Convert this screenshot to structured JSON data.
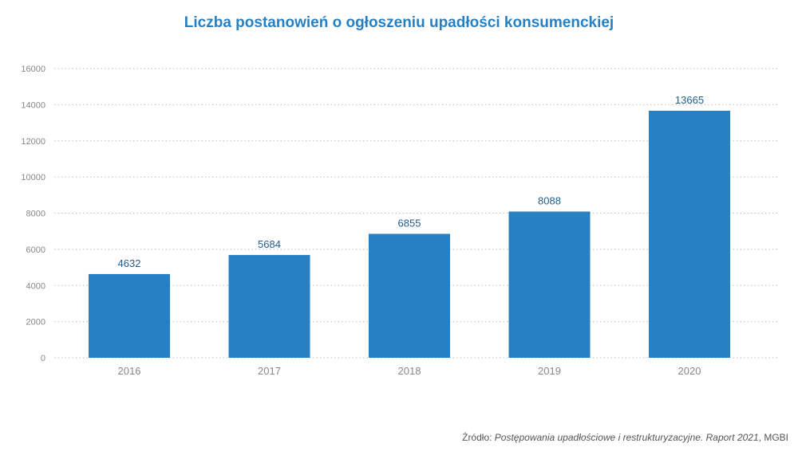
{
  "title": "Liczba postanowień o ogłoszeniu upadłości konsumenckiej",
  "colors": {
    "title": "#2880c4",
    "bar": "#2880c4",
    "value_label": "#1f5d8f",
    "tick_label": "#888888",
    "grid": "#bdbdbd"
  },
  "source": {
    "prefix": "Źródło: ",
    "publication": "Postępowania upadłościowe i restrukturyzacyjne. Raport 2021",
    "suffix": ", MGBI"
  },
  "chart_data": {
    "type": "bar",
    "categories": [
      "2016",
      "2017",
      "2018",
      "2019",
      "2020"
    ],
    "values": [
      4632,
      5684,
      6855,
      8088,
      13665
    ],
    "data_labels": [
      "4632",
      "5684",
      "6855",
      "8088",
      "13665"
    ],
    "title": "Liczba postanowień o ogłoszeniu upadłości konsumenckiej",
    "xlabel": "",
    "ylabel": "",
    "ylim": [
      0,
      16000
    ],
    "yticks": [
      0,
      2000,
      4000,
      6000,
      8000,
      10000,
      12000,
      14000,
      16000
    ],
    "ytick_labels": [
      "0",
      "2000",
      "4000",
      "6000",
      "8000",
      "10000",
      "12000",
      "14000",
      "16000"
    ],
    "grid": true,
    "grid_style": "dotted",
    "legend": "none"
  }
}
